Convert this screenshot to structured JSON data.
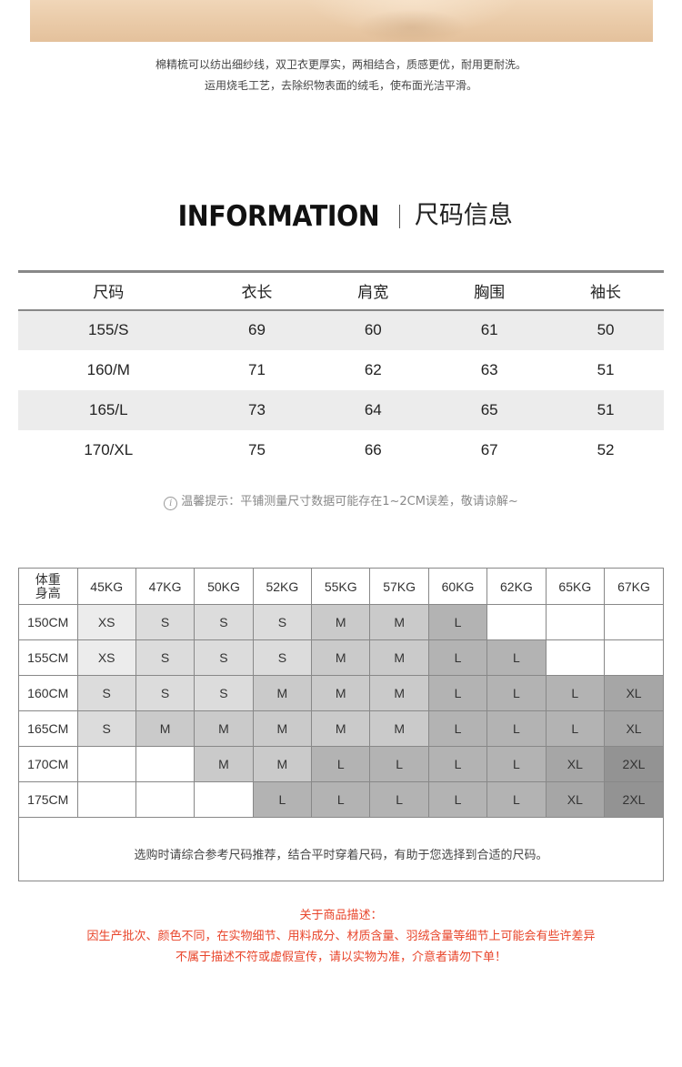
{
  "description": {
    "line1": "棉精梳可以纺出细纱线，双卫衣更厚实，两相结合，质感更优，耐用更耐洗。",
    "line2": "运用烧毛工艺，去除织物表面的绒毛，使布面光洁平滑。"
  },
  "info_heading": {
    "en": "INFORMATION",
    "cn": "尺码信息"
  },
  "size_table": {
    "headers": [
      "尺码",
      "衣长",
      "肩宽",
      "胸围",
      "袖长"
    ],
    "rows": [
      [
        "155/S",
        "69",
        "60",
        "61",
        "50"
      ],
      [
        "160/M",
        "71",
        "62",
        "63",
        "51"
      ],
      [
        "165/L",
        "73",
        "64",
        "65",
        "51"
      ],
      [
        "170/XL",
        "75",
        "66",
        "67",
        "52"
      ]
    ]
  },
  "tip": {
    "icon": "info-icon",
    "text": "温馨提示：平铺测量尺寸数据可能存在1~2CM误差，敬请谅解~"
  },
  "recommend": {
    "corner_top": "体重",
    "corner_bottom": "身高",
    "weights": [
      "45KG",
      "47KG",
      "50KG",
      "52KG",
      "55KG",
      "57KG",
      "60KG",
      "62KG",
      "65KG",
      "67KG"
    ],
    "rows": [
      {
        "height": "150CM",
        "cells": [
          "XS",
          "S",
          "S",
          "S",
          "M",
          "M",
          "L",
          "",
          "",
          ""
        ]
      },
      {
        "height": "155CM",
        "cells": [
          "XS",
          "S",
          "S",
          "S",
          "M",
          "M",
          "L",
          "L",
          "",
          ""
        ]
      },
      {
        "height": "160CM",
        "cells": [
          "S",
          "S",
          "S",
          "M",
          "M",
          "M",
          "L",
          "L",
          "L",
          "XL"
        ]
      },
      {
        "height": "165CM",
        "cells": [
          "S",
          "M",
          "M",
          "M",
          "M",
          "M",
          "L",
          "L",
          "L",
          "XL"
        ]
      },
      {
        "height": "170CM",
        "cells": [
          "",
          "",
          "M",
          "M",
          "L",
          "L",
          "L",
          "L",
          "XL",
          "2XL"
        ]
      },
      {
        "height": "175CM",
        "cells": [
          "",
          "",
          "",
          "L",
          "L",
          "L",
          "L",
          "L",
          "XL",
          "2XL"
        ]
      }
    ],
    "note": "选购时请综合参考尺码推荐，结合平时穿着尺码，有助于您选择到合适的尺码。"
  },
  "notice": {
    "line1": "关于商品描述：",
    "line2": "因生产批次、颜色不同，在实物细节、用料成分、材质含量、羽绒含量等细节上可能会有些许差异",
    "line3": "不属于描述不符或虚假宣传，请以实物为准，介意者请勿下单！"
  },
  "colors": {
    "red_text": "#e8442a",
    "shade_XS": "#ececec",
    "shade_S": "#dcdcdc",
    "shade_M": "#cacaca",
    "shade_L": "#b3b3b3",
    "shade_XL": "#a6a6a6",
    "shade_2XL": "#939393"
  }
}
